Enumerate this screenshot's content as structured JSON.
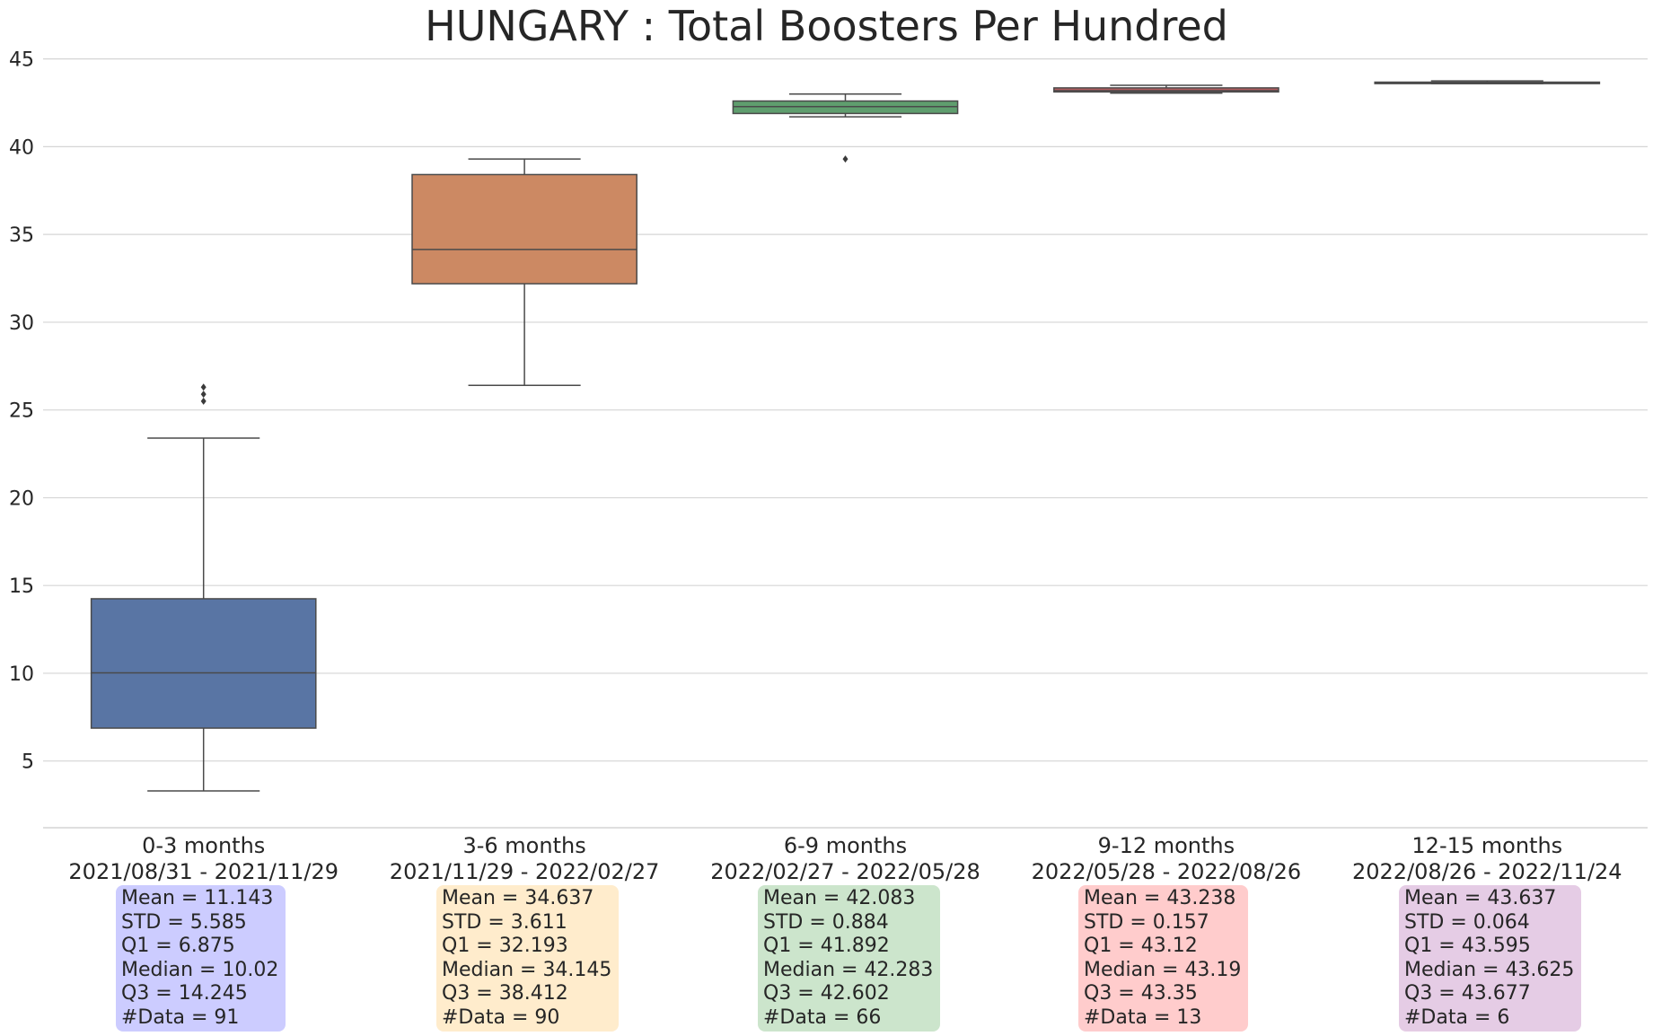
{
  "chart_data": {
    "type": "box",
    "title": "HUNGARY : Total Boosters Per Hundred",
    "xlabel": "",
    "ylabel": "",
    "ylim": [
      1.2,
      45.8
    ],
    "yticks": [
      5,
      10,
      15,
      20,
      25,
      30,
      35,
      40,
      45
    ],
    "grid": "horizontal",
    "categories": [
      {
        "period": "0-3 months",
        "range": "2021/08/31 - 2021/11/29",
        "color": "#5975a4",
        "whisker_low": 3.3,
        "q1": 6.875,
        "median": 10.02,
        "q3": 14.245,
        "whisker_high": 23.4,
        "outliers": [
          25.5,
          25.9,
          26.3
        ],
        "stats": [
          "Mean = 11.143",
          "STD = 5.585",
          "Q1 = 6.875",
          "Median = 10.02",
          "Q3 = 14.245",
          "#Data = 91"
        ],
        "box_color": "#ccccff"
      },
      {
        "period": "3-6 months",
        "range": "2021/11/29 - 2022/02/27",
        "color": "#cc8963",
        "whisker_low": 26.4,
        "q1": 32.193,
        "median": 34.145,
        "q3": 38.412,
        "whisker_high": 39.3,
        "outliers": [],
        "stats": [
          "Mean = 34.637",
          "STD = 3.611",
          "Q1 = 32.193",
          "Median = 34.145",
          "Q3 = 38.412",
          "#Data = 90"
        ],
        "box_color": "#ffeccc"
      },
      {
        "period": "6-9 months",
        "range": "2022/02/27 - 2022/05/28",
        "color": "#5f9e6e",
        "whisker_low": 41.7,
        "q1": 41.892,
        "median": 42.283,
        "q3": 42.602,
        "whisker_high": 43.0,
        "outliers": [
          39.3
        ],
        "stats": [
          "Mean = 42.083",
          "STD = 0.884",
          "Q1 = 41.892",
          "Median = 42.283",
          "Q3 = 42.602",
          "#Data = 66"
        ],
        "box_color": "#cce5cc"
      },
      {
        "period": "9-12 months",
        "range": "2022/05/28 - 2022/08/26",
        "color": "#b55d60",
        "whisker_low": 43.05,
        "q1": 43.12,
        "median": 43.19,
        "q3": 43.35,
        "whisker_high": 43.5,
        "outliers": [],
        "stats": [
          "Mean = 43.238",
          "STD = 0.157",
          "Q1 = 43.12",
          "Median = 43.19",
          "Q3 = 43.35",
          "#Data = 13"
        ],
        "box_color": "#ffcccc"
      },
      {
        "period": "12-15 months",
        "range": "2022/08/26 - 2022/11/24",
        "color": "#857aab",
        "whisker_low": 43.595,
        "q1": 43.595,
        "median": 43.625,
        "q3": 43.677,
        "whisker_high": 43.75,
        "outliers": [],
        "stats": [
          "Mean = 43.637",
          "STD = 0.064",
          "Q1 = 43.595",
          "Median = 43.625",
          "Q3 = 43.677",
          "#Data = 6"
        ],
        "box_color": "#e5cce5"
      }
    ]
  }
}
